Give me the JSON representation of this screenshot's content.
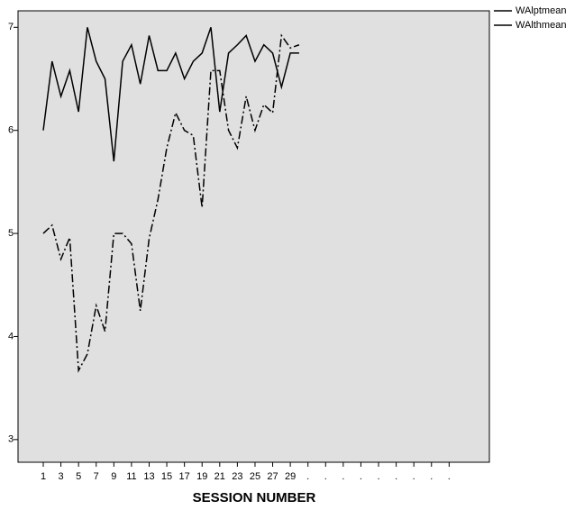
{
  "chart_data": {
    "type": "line",
    "x_label": "SESSION NUMBER",
    "categories": [
      "1",
      null,
      "3",
      null,
      "5",
      null,
      "7",
      null,
      "9",
      null,
      "11",
      null,
      "13",
      null,
      "15",
      null,
      "17",
      null,
      "19",
      null,
      "21",
      null,
      "23",
      null,
      "25",
      null,
      "27",
      null,
      "29",
      null,
      ".",
      null,
      ".",
      null,
      ".",
      null,
      ".",
      null,
      ".",
      null,
      ".",
      null,
      ".",
      null,
      ".",
      null,
      ".",
      null
    ],
    "series": [
      {
        "name": "WAlptmean",
        "color": "#000000",
        "line_style": "solid",
        "values": [
          6.0,
          6.67,
          6.33,
          6.58,
          6.18,
          7.0,
          6.67,
          6.5,
          5.7,
          6.67,
          6.83,
          6.45,
          6.92,
          6.58,
          6.58,
          6.75,
          6.5,
          6.67,
          6.75,
          7.0,
          6.18,
          6.75,
          6.83,
          6.92,
          6.67,
          6.83,
          6.75,
          6.42,
          6.75,
          6.75,
          null,
          null,
          null,
          null,
          null,
          null,
          null,
          null,
          null,
          null,
          null,
          null,
          null,
          null,
          null,
          null,
          null,
          null
        ]
      },
      {
        "name": "WAlthmean",
        "color": "#000000",
        "line_style": "dashdot",
        "values": [
          5.0,
          5.08,
          4.75,
          4.96,
          3.67,
          3.83,
          4.3,
          4.05,
          5.0,
          5.0,
          4.9,
          4.25,
          4.95,
          5.33,
          5.83,
          6.17,
          6.0,
          5.95,
          5.25,
          6.58,
          6.58,
          6.0,
          5.83,
          6.33,
          6.0,
          6.25,
          6.17,
          6.92,
          6.8,
          6.83,
          null,
          null,
          null,
          null,
          null,
          null,
          null,
          null,
          null,
          null,
          null,
          null,
          null,
          null,
          null,
          null,
          null,
          null
        ]
      }
    ],
    "ylim": [
      2.78,
      7.16
    ],
    "yticks": [
      3,
      4,
      5,
      6,
      7
    ],
    "legend": "top-right",
    "background": "#e0e0e0"
  }
}
